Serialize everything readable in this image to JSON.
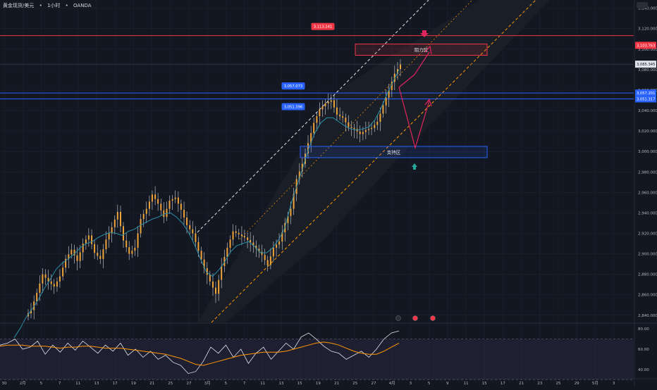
{
  "header": {
    "symbol": "黄金现货/美元",
    "dot": "•",
    "interval": "1小时",
    "exchange": "OANDA",
    "currency": "USD"
  },
  "colors": {
    "background": "#131722",
    "grid": "#1e222d",
    "candle_body": "#f0a339",
    "candle_wick": "#d1d4dc",
    "ma_line": "#2a8fa8",
    "channel_line": "#ff9800",
    "dashed_white": "#e0e3eb",
    "resistance_line": "#f23645",
    "support_line": "#2962ff",
    "arrow_red": "#e0245e",
    "arrow_teal": "#26a69a",
    "rsi_line": "#e0e3eb",
    "rsi_ma": "#ff9800",
    "rsi_band": "#2a2640"
  },
  "chart_data": {
    "type": "candlestick",
    "instrument": "黄金现货/美元",
    "interval": "1小时",
    "x_ticks": [
      "30",
      "2月",
      "5",
      "7",
      "11",
      "13",
      "17",
      "19",
      "21",
      "25",
      "27",
      "3月",
      "5",
      "7",
      "11",
      "13",
      "15",
      "19",
      "21",
      "25",
      "27",
      "4月",
      "3",
      "5",
      "9",
      "11",
      "15",
      "17",
      "21",
      "23",
      "25",
      "29",
      "5月",
      "3"
    ],
    "y_ticks": [
      "2,840.000",
      "2,860.000",
      "2,880.000",
      "2,900.000",
      "2,920.000",
      "2,940.000",
      "2,960.000",
      "2,980.000",
      "3,000.000",
      "3,020.000",
      "3,040.000",
      "3,060.000",
      "3,080.000",
      "3,100.000",
      "3,120.000",
      "3,140.000"
    ],
    "ylim": [
      2833,
      3148
    ],
    "price_labels": {
      "resistance_top": "3,113.241",
      "resistance_axis": "3,103.763",
      "last_price": "3,085.345",
      "blue_upper": "3,057.073",
      "blue_upper_axis": "3,057.201",
      "blue_lower": "3,051.396",
      "blue_lower_axis": "3,051.317"
    },
    "levels": {
      "resistance": 3113.2,
      "blue_upper": 3057.1,
      "blue_lower": 3051.4,
      "last": 3085.3
    },
    "zones": [
      {
        "label": "阻力区",
        "top": 3105,
        "bottom": 3094
      },
      {
        "label": "支持区",
        "top": 3005,
        "bottom": 2994
      }
    ],
    "series": [
      {
        "name": "close",
        "values": [
          2845,
          2862,
          2880,
          2873,
          2868,
          2878,
          2895,
          2904,
          2893,
          2910,
          2918,
          2901,
          2895,
          2914,
          2926,
          2941,
          2913,
          2900,
          2906,
          2934,
          2944,
          2958,
          2949,
          2936,
          2952,
          2955,
          2943,
          2928,
          2920,
          2903,
          2886,
          2873,
          2861,
          2888,
          2906,
          2922,
          2919,
          2916,
          2911,
          2905,
          2899,
          2889,
          2906,
          2912,
          2930,
          2944,
          2973,
          2988,
          3008,
          3028,
          3041,
          3047,
          3050,
          3036,
          3033,
          3024,
          3022,
          3017,
          3021,
          3023,
          3029,
          3045,
          3060,
          3076,
          3085
        ]
      },
      {
        "name": "ma",
        "values": [
          2818,
          2827,
          2838,
          2846,
          2855,
          2866,
          2875,
          2885,
          2891,
          2895,
          2900,
          2906,
          2910,
          2912,
          2916,
          2919,
          2921,
          2920,
          2918,
          2922,
          2924,
          2928,
          2931,
          2934,
          2936,
          2939,
          2940,
          2936,
          2930,
          2921,
          2909,
          2895,
          2882,
          2878,
          2884,
          2892,
          2902,
          2908,
          2910,
          2912,
          2907,
          2901,
          2901,
          2906,
          2914,
          2925,
          2948,
          2966,
          2984,
          3003,
          3018,
          3028,
          3033,
          3033,
          3029,
          3025,
          3022,
          3021,
          3022,
          3024,
          3031,
          3042,
          3056,
          3068,
          3080
        ]
      }
    ]
  },
  "rsi": {
    "ticks": [
      "80.00",
      "60.00",
      "40.00"
    ],
    "ylim": [
      35,
      85
    ],
    "upper_band": 70,
    "lower_band": 30,
    "series": [
      {
        "name": "rsi",
        "values": [
          64,
          66,
          70,
          60,
          62,
          68,
          55,
          64,
          57,
          66,
          59,
          68,
          62,
          56,
          64,
          58,
          66,
          54,
          60,
          52,
          58,
          50,
          54,
          47,
          44,
          36,
          38,
          48,
          62,
          56,
          64,
          52,
          60,
          46,
          56,
          62,
          50,
          58,
          66,
          60,
          72,
          76,
          70,
          63,
          58,
          56,
          50,
          54,
          58,
          52,
          60,
          70,
          76,
          78
        ]
      },
      {
        "name": "ma",
        "values": [
          63,
          64,
          64,
          64,
          63,
          63,
          63,
          62,
          61,
          62,
          62,
          63,
          63,
          62,
          61,
          61,
          61,
          60,
          59,
          58,
          57,
          56,
          55,
          53,
          51,
          48,
          45,
          44,
          46,
          48,
          50,
          52,
          54,
          55,
          56,
          57,
          57,
          57,
          58,
          60,
          62,
          64,
          66,
          67,
          66,
          64,
          61,
          58,
          56,
          55,
          55,
          58,
          62,
          66
        ]
      }
    ]
  },
  "overlay_icons": [
    "lightning-icon",
    "flag-icon",
    "flag-icon"
  ]
}
